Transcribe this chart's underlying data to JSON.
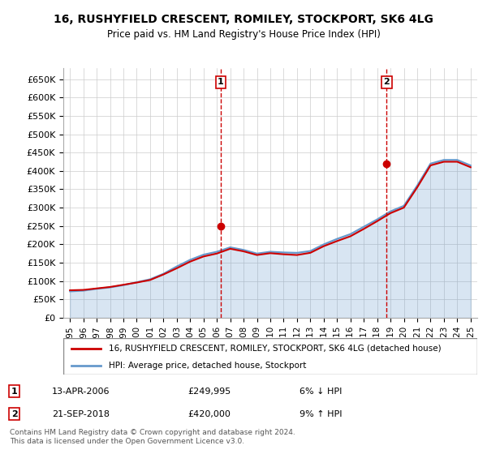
{
  "title": "16, RUSHYFIELD CRESCENT, ROMILEY, STOCKPORT, SK6 4LG",
  "subtitle": "Price paid vs. HM Land Registry's House Price Index (HPI)",
  "ylabel_ticks": [
    "£0",
    "£50K",
    "£100K",
    "£150K",
    "£200K",
    "£250K",
    "£300K",
    "£350K",
    "£400K",
    "£450K",
    "£500K",
    "£550K",
    "£600K",
    "£650K"
  ],
  "ytick_values": [
    0,
    50000,
    100000,
    150000,
    200000,
    250000,
    300000,
    350000,
    400000,
    450000,
    500000,
    550000,
    600000,
    650000
  ],
  "ylim": [
    0,
    680000
  ],
  "xlim_start": 1994.5,
  "xlim_end": 2025.5,
  "sale1_x": 2006.28,
  "sale1_y": 249995,
  "sale1_label": "1",
  "sale1_date": "13-APR-2006",
  "sale1_price": "£249,995",
  "sale1_hpi": "6% ↓ HPI",
  "sale2_x": 2018.72,
  "sale2_y": 420000,
  "sale2_label": "2",
  "sale2_date": "21-SEP-2018",
  "sale2_price": "£420,000",
  "sale2_hpi": "9% ↑ HPI",
  "line1_color": "#cc0000",
  "line2_color": "#6699cc",
  "vline_color": "#cc0000",
  "marker_color": "#cc0000",
  "grid_color": "#cccccc",
  "bg_color": "#ffffff",
  "legend1_label": "16, RUSHYFIELD CRESCENT, ROMILEY, STOCKPORT, SK6 4LG (detached house)",
  "legend2_label": "HPI: Average price, detached house, Stockport",
  "footer": "Contains HM Land Registry data © Crown copyright and database right 2024.\nThis data is licensed under the Open Government Licence v3.0.",
  "hpi_years": [
    1995,
    1996,
    1997,
    1998,
    1999,
    2000,
    2001,
    2002,
    2003,
    2004,
    2005,
    2006,
    2007,
    2008,
    2009,
    2010,
    2011,
    2012,
    2013,
    2014,
    2015,
    2016,
    2017,
    2018,
    2019,
    2020,
    2021,
    2022,
    2023,
    2024,
    2025
  ],
  "hpi_values": [
    72000,
    74000,
    79000,
    83000,
    89000,
    97000,
    105000,
    120000,
    140000,
    158000,
    172000,
    180000,
    192000,
    185000,
    175000,
    180000,
    178000,
    177000,
    182000,
    200000,
    215000,
    228000,
    248000,
    268000,
    290000,
    305000,
    360000,
    420000,
    430000,
    430000,
    415000
  ],
  "price_years": [
    1995,
    1996,
    1997,
    1998,
    1999,
    2000,
    2001,
    2002,
    2003,
    2004,
    2005,
    2006,
    2007,
    2008,
    2009,
    2010,
    2011,
    2012,
    2013,
    2014,
    2015,
    2016,
    2017,
    2018,
    2019,
    2020,
    2021,
    2022,
    2023,
    2024,
    2025
  ],
  "price_values": [
    75000,
    76000,
    80000,
    84000,
    90000,
    96000,
    103000,
    118000,
    135000,
    153000,
    167000,
    175000,
    188000,
    181000,
    171000,
    176000,
    173000,
    171000,
    177000,
    195000,
    209000,
    222000,
    242000,
    263000,
    285000,
    300000,
    355000,
    415000,
    425000,
    425000,
    410000
  ],
  "xtick_years": [
    1995,
    1996,
    1997,
    1998,
    1999,
    2000,
    2001,
    2002,
    2003,
    2004,
    2005,
    2006,
    2007,
    2008,
    2009,
    2010,
    2011,
    2012,
    2013,
    2014,
    2015,
    2016,
    2017,
    2018,
    2019,
    2020,
    2021,
    2022,
    2023,
    2024,
    2025
  ]
}
